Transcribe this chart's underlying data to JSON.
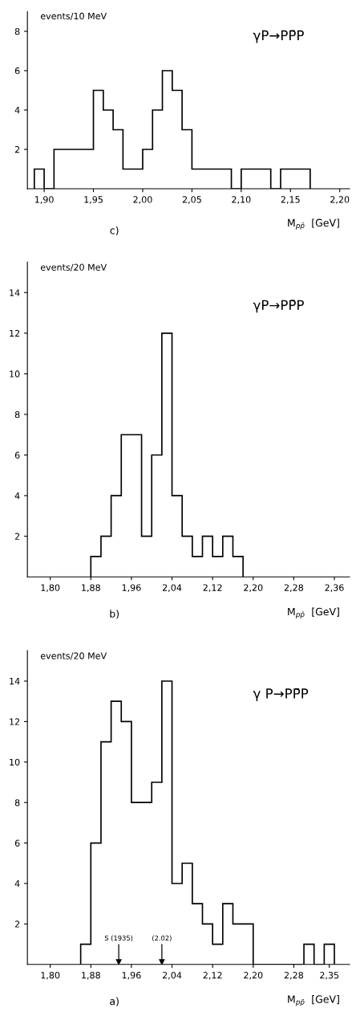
{
  "chart_data": [
    {
      "type": "histogram",
      "title": "γP→PP̄P",
      "ylabel": "events/10 MeV",
      "xlabel": "M$_{pp̄}$  [GeV]",
      "color": "#000000",
      "grid": false,
      "bins": [
        1.89,
        1.9,
        1.91,
        1.92,
        1.93,
        1.94,
        1.95,
        1.96,
        1.97,
        1.98,
        1.99,
        2.0,
        2.01,
        2.02,
        2.03,
        2.04,
        2.05,
        2.06,
        2.07,
        2.08,
        2.09,
        2.1,
        2.11,
        2.12,
        2.13,
        2.14,
        2.15,
        2.16,
        2.17
      ],
      "values": [
        1,
        0,
        2,
        2,
        2,
        2,
        5,
        4,
        3,
        1,
        1,
        2,
        4,
        6,
        5,
        3,
        1,
        1,
        1,
        1,
        0,
        1,
        1,
        1,
        0,
        1,
        1,
        1
      ],
      "xlim": [
        1.883,
        2.21
      ],
      "ylim": [
        0,
        9
      ],
      "xticks": [
        {
          "value": 1.9,
          "label": "1,90"
        },
        {
          "value": 1.95,
          "label": "1,95"
        },
        {
          "value": 2.0,
          "label": "2,00"
        },
        {
          "value": 2.05,
          "label": "2,05"
        },
        {
          "value": 2.1,
          "label": "2,10"
        },
        {
          "value": 2.15,
          "label": "2,15"
        },
        {
          "value": 2.2,
          "label": "2,20"
        }
      ],
      "yticks": [
        2,
        4,
        6,
        8
      ],
      "annotations": [
        "c)"
      ]
    },
    {
      "type": "histogram",
      "title": "γP→PP̄P",
      "ylabel": "events/20 MeV",
      "xlabel": "M$_{pp̄}$  [GeV]",
      "color": "#000000",
      "grid": false,
      "bins": [
        1.88,
        1.9,
        1.92,
        1.94,
        1.96,
        1.98,
        2.0,
        2.02,
        2.04,
        2.06,
        2.08,
        2.1,
        2.12,
        2.14,
        2.16,
        2.18
      ],
      "values": [
        1,
        2,
        4,
        7,
        7,
        2,
        6,
        12,
        4,
        2,
        1,
        2,
        1,
        2,
        1
      ],
      "xlim": [
        1.755,
        2.39
      ],
      "ylim": [
        0,
        15.5
      ],
      "xticks": [
        {
          "value": 1.8,
          "label": "1,80"
        },
        {
          "value": 1.88,
          "label": "1,88"
        },
        {
          "value": 1.96,
          "label": "1,96"
        },
        {
          "value": 2.04,
          "label": "2,04"
        },
        {
          "value": 2.12,
          "label": "2,12"
        },
        {
          "value": 2.2,
          "label": "2,20"
        },
        {
          "value": 2.28,
          "label": "2,28"
        },
        {
          "value": 2.36,
          "label": "2,36"
        }
      ],
      "yticks": [
        2,
        4,
        6,
        8,
        10,
        12,
        14
      ],
      "annotations": [
        "b)"
      ]
    },
    {
      "type": "histogram",
      "title": "γ P→PP̄P",
      "ylabel": "events/20 MeV",
      "xlabel": "M$_{pp̄}$  [GeV]",
      "color": "#000000",
      "grid": false,
      "bins": [
        1.86,
        1.88,
        1.9,
        1.92,
        1.94,
        1.96,
        1.98,
        2.0,
        2.02,
        2.04,
        2.06,
        2.08,
        2.1,
        2.12,
        2.14,
        2.16,
        2.18,
        2.2,
        2.22,
        2.24,
        2.26,
        2.28,
        2.3,
        2.32,
        2.34,
        2.36
      ],
      "values": [
        1,
        6,
        11,
        13,
        12,
        8,
        8,
        9,
        14,
        4,
        5,
        3,
        2,
        1,
        3,
        2,
        2,
        0,
        0,
        0,
        0,
        0,
        1,
        0,
        1
      ],
      "xlim": [
        1.755,
        2.39
      ],
      "ylim": [
        0,
        15.5
      ],
      "xticks": [
        {
          "value": 1.8,
          "label": "1,80"
        },
        {
          "value": 1.88,
          "label": "1,88"
        },
        {
          "value": 1.96,
          "label": "1,96"
        },
        {
          "value": 2.04,
          "label": "2,04"
        },
        {
          "value": 2.12,
          "label": "2,12"
        },
        {
          "value": 2.2,
          "label": "2,20"
        },
        {
          "value": 2.28,
          "label": "2,28"
        },
        {
          "value": 2.35,
          "label": "2,35"
        }
      ],
      "yticks": [
        2,
        4,
        6,
        8,
        10,
        12,
        14
      ],
      "annotations": [
        "a)"
      ],
      "ref_lines": [
        {
          "axis": "x",
          "value": 1.935,
          "label": "S (1935)"
        },
        {
          "axis": "x",
          "value": 2.02,
          "label": "(2.02)"
        }
      ]
    }
  ]
}
